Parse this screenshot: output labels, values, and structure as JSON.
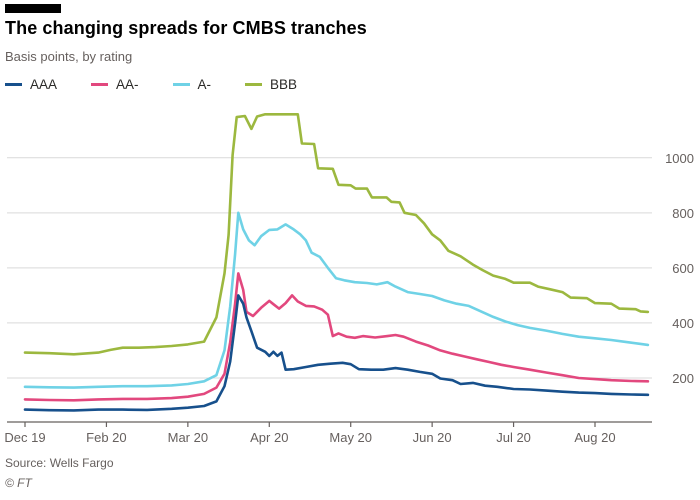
{
  "chart_data": {
    "type": "line",
    "title": "The changing spreads for CMBS tranches",
    "subtitle": "Basis points, by rating",
    "source": "Source: Wells Fargo",
    "ylabel": "Basis points",
    "grid": true,
    "legend_position": "top",
    "xlim": [
      0,
      7.7
    ],
    "ylim": [
      40,
      1210
    ],
    "y_ticks": [
      200,
      400,
      600,
      800,
      1000
    ],
    "x_ticks": [
      {
        "label": "Dec 19",
        "x": 0
      },
      {
        "label": "Feb 20",
        "x": 1
      },
      {
        "label": "Mar 20",
        "x": 2
      },
      {
        "label": "Apr 20",
        "x": 3
      },
      {
        "label": "May 20",
        "x": 4
      },
      {
        "label": "Jun 20",
        "x": 5
      },
      {
        "label": "Jul 20",
        "x": 6
      },
      {
        "label": "Aug 20",
        "x": 7
      }
    ],
    "axis_color": "#66605e",
    "grid_color": "#d9d9d9",
    "series": [
      {
        "name": "AAA",
        "color": "#17508c",
        "points": [
          [
            0,
            85
          ],
          [
            0.3,
            83
          ],
          [
            0.6,
            82
          ],
          [
            0.9,
            85
          ],
          [
            1.2,
            85
          ],
          [
            1.5,
            84
          ],
          [
            1.8,
            88
          ],
          [
            2.0,
            92
          ],
          [
            2.2,
            98
          ],
          [
            2.35,
            115
          ],
          [
            2.45,
            170
          ],
          [
            2.52,
            260
          ],
          [
            2.58,
            400
          ],
          [
            2.62,
            500
          ],
          [
            2.68,
            470
          ],
          [
            2.72,
            420
          ],
          [
            2.78,
            370
          ],
          [
            2.85,
            310
          ],
          [
            2.95,
            295
          ],
          [
            3.0,
            280
          ],
          [
            3.05,
            295
          ],
          [
            3.1,
            280
          ],
          [
            3.15,
            292
          ],
          [
            3.2,
            230
          ],
          [
            3.3,
            232
          ],
          [
            3.45,
            240
          ],
          [
            3.6,
            248
          ],
          [
            3.75,
            252
          ],
          [
            3.9,
            255
          ],
          [
            4.0,
            250
          ],
          [
            4.1,
            232
          ],
          [
            4.25,
            230
          ],
          [
            4.4,
            230
          ],
          [
            4.55,
            236
          ],
          [
            4.7,
            230
          ],
          [
            4.85,
            222
          ],
          [
            5.0,
            215
          ],
          [
            5.1,
            198
          ],
          [
            5.25,
            192
          ],
          [
            5.35,
            178
          ],
          [
            5.5,
            182
          ],
          [
            5.65,
            172
          ],
          [
            5.8,
            168
          ],
          [
            6.0,
            160
          ],
          [
            6.2,
            158
          ],
          [
            6.4,
            154
          ],
          [
            6.6,
            150
          ],
          [
            6.8,
            147
          ],
          [
            7.0,
            145
          ],
          [
            7.2,
            142
          ],
          [
            7.45,
            140
          ],
          [
            7.65,
            139
          ]
        ]
      },
      {
        "name": "AA-",
        "color": "#e2487e",
        "points": [
          [
            0,
            122
          ],
          [
            0.3,
            120
          ],
          [
            0.6,
            119
          ],
          [
            0.9,
            122
          ],
          [
            1.2,
            124
          ],
          [
            1.5,
            124
          ],
          [
            1.8,
            127
          ],
          [
            2.0,
            132
          ],
          [
            2.2,
            142
          ],
          [
            2.35,
            165
          ],
          [
            2.45,
            215
          ],
          [
            2.52,
            330
          ],
          [
            2.58,
            470
          ],
          [
            2.62,
            580
          ],
          [
            2.68,
            520
          ],
          [
            2.72,
            440
          ],
          [
            2.8,
            425
          ],
          [
            2.9,
            455
          ],
          [
            3.0,
            480
          ],
          [
            3.05,
            468
          ],
          [
            3.12,
            452
          ],
          [
            3.2,
            472
          ],
          [
            3.28,
            500
          ],
          [
            3.35,
            478
          ],
          [
            3.45,
            462
          ],
          [
            3.55,
            460
          ],
          [
            3.65,
            448
          ],
          [
            3.72,
            430
          ],
          [
            3.78,
            352
          ],
          [
            3.85,
            362
          ],
          [
            3.95,
            350
          ],
          [
            4.05,
            346
          ],
          [
            4.15,
            352
          ],
          [
            4.3,
            347
          ],
          [
            4.45,
            352
          ],
          [
            4.55,
            356
          ],
          [
            4.65,
            350
          ],
          [
            4.8,
            332
          ],
          [
            4.95,
            318
          ],
          [
            5.1,
            300
          ],
          [
            5.25,
            288
          ],
          [
            5.4,
            278
          ],
          [
            5.55,
            268
          ],
          [
            5.7,
            258
          ],
          [
            5.85,
            248
          ],
          [
            6.0,
            240
          ],
          [
            6.2,
            230
          ],
          [
            6.4,
            220
          ],
          [
            6.6,
            210
          ],
          [
            6.8,
            200
          ],
          [
            7.0,
            196
          ],
          [
            7.2,
            192
          ],
          [
            7.45,
            189
          ],
          [
            7.65,
            188
          ]
        ]
      },
      {
        "name": "A-",
        "color": "#6fd2e6",
        "points": [
          [
            0,
            168
          ],
          [
            0.3,
            166
          ],
          [
            0.6,
            165
          ],
          [
            0.9,
            168
          ],
          [
            1.2,
            170
          ],
          [
            1.5,
            170
          ],
          [
            1.8,
            173
          ],
          [
            2.0,
            178
          ],
          [
            2.2,
            188
          ],
          [
            2.35,
            210
          ],
          [
            2.45,
            300
          ],
          [
            2.52,
            460
          ],
          [
            2.58,
            650
          ],
          [
            2.62,
            800
          ],
          [
            2.68,
            740
          ],
          [
            2.75,
            700
          ],
          [
            2.82,
            682
          ],
          [
            2.9,
            715
          ],
          [
            3.0,
            738
          ],
          [
            3.1,
            740
          ],
          [
            3.2,
            758
          ],
          [
            3.3,
            740
          ],
          [
            3.38,
            722
          ],
          [
            3.45,
            700
          ],
          [
            3.52,
            655
          ],
          [
            3.62,
            640
          ],
          [
            3.72,
            600
          ],
          [
            3.82,
            562
          ],
          [
            3.92,
            555
          ],
          [
            4.05,
            548
          ],
          [
            4.2,
            545
          ],
          [
            4.32,
            540
          ],
          [
            4.45,
            548
          ],
          [
            4.55,
            532
          ],
          [
            4.7,
            512
          ],
          [
            4.85,
            505
          ],
          [
            5.0,
            498
          ],
          [
            5.15,
            482
          ],
          [
            5.3,
            470
          ],
          [
            5.45,
            462
          ],
          [
            5.6,
            442
          ],
          [
            5.75,
            422
          ],
          [
            5.9,
            405
          ],
          [
            6.05,
            392
          ],
          [
            6.2,
            382
          ],
          [
            6.4,
            372
          ],
          [
            6.6,
            360
          ],
          [
            6.8,
            350
          ],
          [
            7.0,
            344
          ],
          [
            7.2,
            338
          ],
          [
            7.4,
            330
          ],
          [
            7.55,
            324
          ],
          [
            7.65,
            320
          ]
        ]
      },
      {
        "name": "BBB",
        "color": "#9cb83f",
        "points": [
          [
            0,
            292
          ],
          [
            0.3,
            290
          ],
          [
            0.6,
            286
          ],
          [
            0.9,
            292
          ],
          [
            1.05,
            302
          ],
          [
            1.2,
            310
          ],
          [
            1.4,
            310
          ],
          [
            1.6,
            312
          ],
          [
            1.8,
            316
          ],
          [
            2.0,
            322
          ],
          [
            2.2,
            332
          ],
          [
            2.35,
            420
          ],
          [
            2.45,
            580
          ],
          [
            2.5,
            720
          ],
          [
            2.55,
            1010
          ],
          [
            2.6,
            1148
          ],
          [
            2.7,
            1152
          ],
          [
            2.78,
            1105
          ],
          [
            2.85,
            1150
          ],
          [
            2.95,
            1158
          ],
          [
            3.1,
            1158
          ],
          [
            3.25,
            1158
          ],
          [
            3.35,
            1158
          ],
          [
            3.4,
            1052
          ],
          [
            3.55,
            1050
          ],
          [
            3.6,
            962
          ],
          [
            3.78,
            960
          ],
          [
            3.85,
            902
          ],
          [
            4.0,
            900
          ],
          [
            4.06,
            888
          ],
          [
            4.2,
            888
          ],
          [
            4.26,
            856
          ],
          [
            4.44,
            856
          ],
          [
            4.5,
            840
          ],
          [
            4.6,
            838
          ],
          [
            4.66,
            800
          ],
          [
            4.8,
            792
          ],
          [
            4.9,
            762
          ],
          [
            5.0,
            722
          ],
          [
            5.1,
            700
          ],
          [
            5.2,
            662
          ],
          [
            5.35,
            642
          ],
          [
            5.5,
            612
          ],
          [
            5.62,
            592
          ],
          [
            5.75,
            572
          ],
          [
            5.9,
            560
          ],
          [
            6.0,
            546
          ],
          [
            6.2,
            546
          ],
          [
            6.3,
            532
          ],
          [
            6.45,
            522
          ],
          [
            6.6,
            512
          ],
          [
            6.7,
            492
          ],
          [
            6.9,
            490
          ],
          [
            7.0,
            472
          ],
          [
            7.2,
            470
          ],
          [
            7.3,
            452
          ],
          [
            7.5,
            450
          ],
          [
            7.56,
            442
          ],
          [
            7.65,
            440
          ]
        ]
      }
    ]
  },
  "footer": {
    "brand": "© FT"
  }
}
